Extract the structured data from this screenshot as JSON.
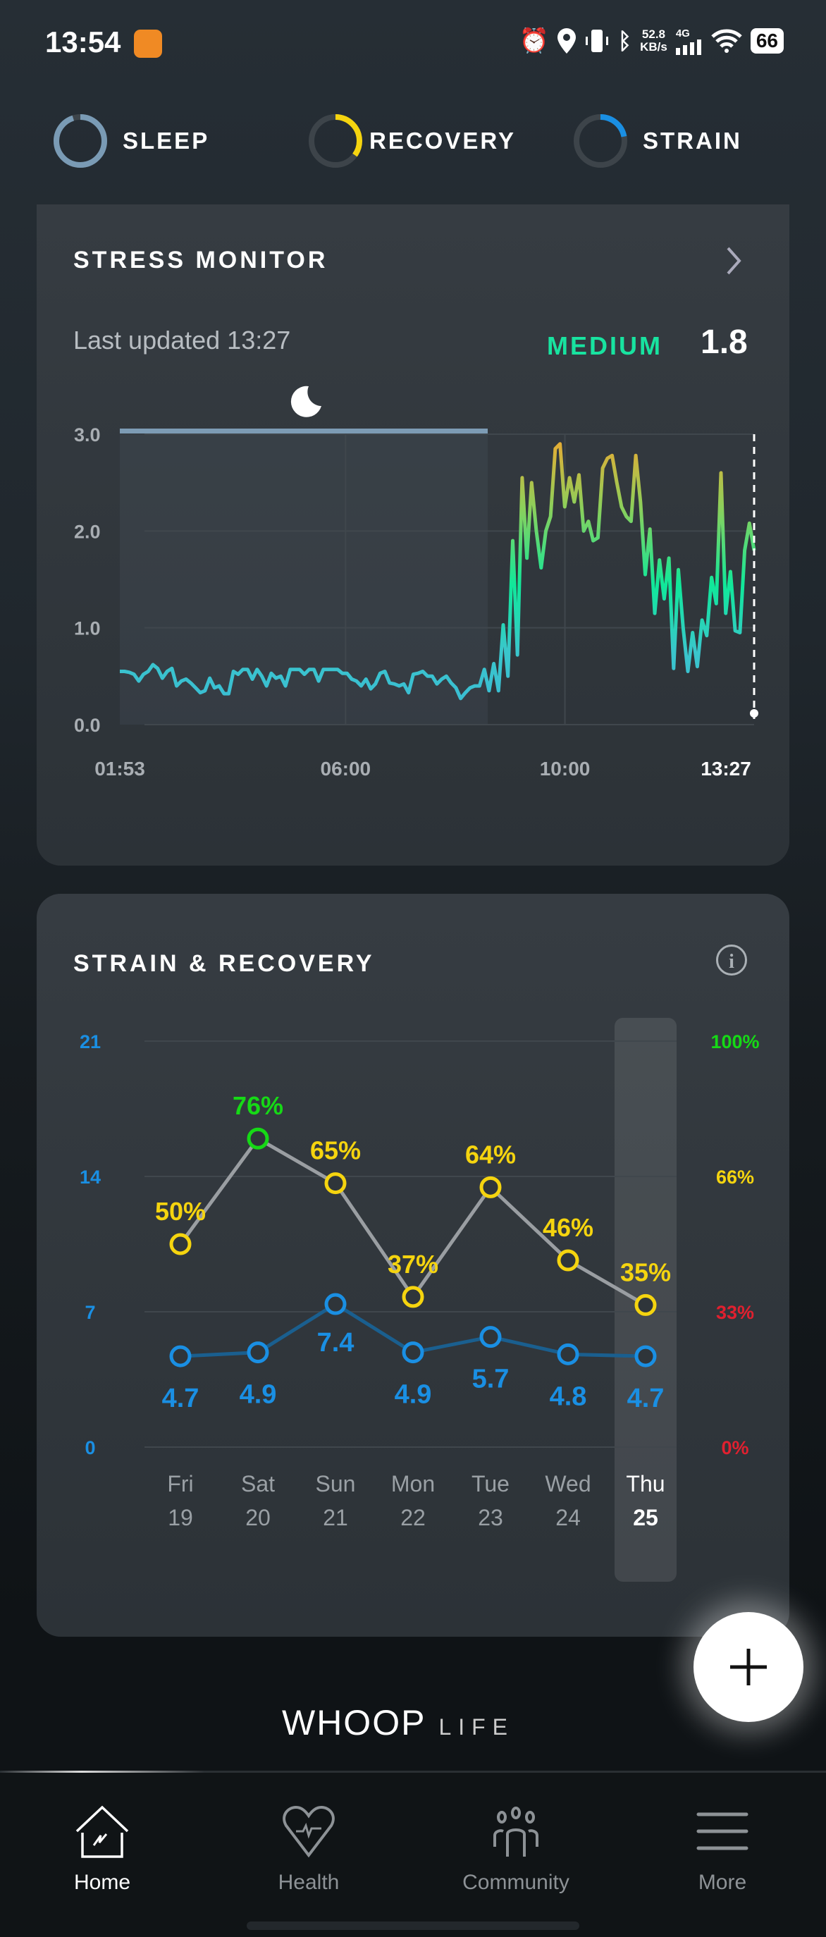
{
  "status_bar": {
    "time": "13:54",
    "speed_value": "52.8",
    "speed_unit": "KB/s",
    "network": "4G",
    "battery": "66"
  },
  "tabs": [
    {
      "label": "SLEEP",
      "color": "#7a9bb5",
      "progress": 0.95
    },
    {
      "label": "RECOVERY",
      "color": "#f5d40f",
      "progress": 0.35
    },
    {
      "label": "STRAIN",
      "color": "#1a8fe3",
      "progress": 0.22
    }
  ],
  "stress": {
    "title": "STRESS MONITOR",
    "last_updated": "Last updated 13:27",
    "level": "MEDIUM",
    "value": "1.8",
    "chart_data": {
      "type": "line",
      "y_ticks": [
        "3.0",
        "2.0",
        "1.0",
        "0.0"
      ],
      "ylim": [
        0,
        3
      ],
      "x_ticks": [
        "01:53",
        "06:00",
        "10:00",
        "13:27"
      ],
      "x_range_minutes": [
        113,
        807
      ],
      "sleep_period_fraction": 0.58,
      "values": [
        0.55,
        0.55,
        0.54,
        0.52,
        0.45,
        0.52,
        0.55,
        0.62,
        0.58,
        0.48,
        0.55,
        0.58,
        0.4,
        0.45,
        0.47,
        0.43,
        0.38,
        0.33,
        0.35,
        0.48,
        0.38,
        0.4,
        0.32,
        0.32,
        0.55,
        0.52,
        0.57,
        0.57,
        0.47,
        0.57,
        0.5,
        0.4,
        0.53,
        0.48,
        0.5,
        0.4,
        0.57,
        0.57,
        0.57,
        0.52,
        0.57,
        0.57,
        0.45,
        0.57,
        0.57,
        0.57,
        0.57,
        0.53,
        0.53,
        0.47,
        0.45,
        0.4,
        0.47,
        0.37,
        0.42,
        0.53,
        0.55,
        0.43,
        0.42,
        0.4,
        0.42,
        0.33,
        0.52,
        0.53,
        0.55,
        0.5,
        0.5,
        0.42,
        0.47,
        0.5,
        0.43,
        0.38,
        0.27,
        0.33,
        0.38,
        0.4,
        0.4,
        0.57,
        0.35,
        0.63,
        0.35,
        1.03,
        0.5,
        1.9,
        0.72,
        2.55,
        1.72,
        2.5,
        2.0,
        1.62,
        2.0,
        2.15,
        2.85,
        2.9,
        2.25,
        2.55,
        2.3,
        2.58,
        2.0,
        2.1,
        1.9,
        1.93,
        2.65,
        2.75,
        2.78,
        2.5,
        2.25,
        2.15,
        2.1,
        2.78,
        2.3,
        1.55,
        2.02,
        1.15,
        1.7,
        1.3,
        1.72,
        0.58,
        1.6,
        1.0,
        0.55,
        0.95,
        0.6,
        1.08,
        0.92,
        1.52,
        1.25,
        2.6,
        1.15,
        1.58,
        0.97,
        0.95,
        1.8,
        2.08,
        1.8
      ]
    }
  },
  "strain_recovery": {
    "title": "STRAIN & RECOVERY",
    "chart_data": {
      "type": "line",
      "left_ticks": [
        "21",
        "14",
        "7",
        "0"
      ],
      "right_ticks": [
        "100%",
        "66%",
        "33%",
        "0%"
      ],
      "right_tick_colors": [
        "#16d916",
        "#f5d40f",
        "#e0202f",
        "#e0202f"
      ],
      "strain_ylim": [
        0,
        21
      ],
      "recovery_ylim": [
        0,
        100
      ],
      "days": [
        {
          "day": "Fri",
          "date": "19"
        },
        {
          "day": "Sat",
          "date": "20"
        },
        {
          "day": "Sun",
          "date": "21"
        },
        {
          "day": "Mon",
          "date": "22"
        },
        {
          "day": "Tue",
          "date": "23"
        },
        {
          "day": "Wed",
          "date": "24"
        },
        {
          "day": "Thu",
          "date": "25"
        }
      ],
      "selected_index": 6,
      "series": [
        {
          "name": "Recovery",
          "values": [
            50,
            76,
            65,
            37,
            64,
            46,
            35
          ],
          "labels": [
            "50%",
            "76%",
            "65%",
            "37%",
            "64%",
            "46%",
            "35%"
          ]
        },
        {
          "name": "Strain",
          "values": [
            4.7,
            4.9,
            7.4,
            4.9,
            5.7,
            4.8,
            4.7
          ],
          "labels": [
            "4.7",
            "4.9",
            "7.4",
            "4.9",
            "5.7",
            "4.8",
            "4.7"
          ]
        }
      ]
    }
  },
  "brand": {
    "logo": "WHOOP",
    "suffix": "LIFE"
  },
  "nav": [
    {
      "label": "Home",
      "icon": "home-icon",
      "active": true
    },
    {
      "label": "Health",
      "icon": "heart-icon"
    },
    {
      "label": "Community",
      "icon": "community-icon"
    },
    {
      "label": "More",
      "icon": "menu-icon"
    }
  ]
}
